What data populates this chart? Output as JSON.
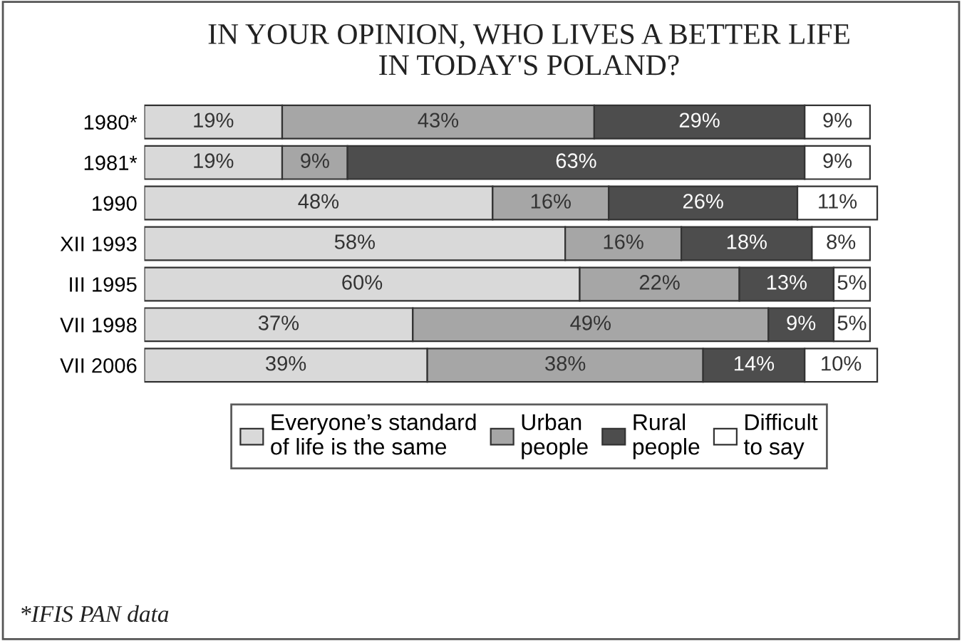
{
  "chart_data": {
    "type": "bar",
    "orientation": "horizontal",
    "stacked": true,
    "title": "IN YOUR OPINION, WHO LIVES A BETTER LIFE\nIN TODAY'S POLAND?",
    "categories": [
      "1980*",
      "1981*",
      "1990",
      "XII 1993",
      "III 1995",
      "VII 1998",
      "VII 2006"
    ],
    "series": [
      {
        "name": "Everyone’s standard\nof life is the same",
        "color": "#d9d9d9",
        "values": [
          19,
          19,
          48,
          58,
          60,
          37,
          39
        ],
        "value_labels": [
          "19%",
          "19%",
          "48%",
          "58%",
          "60%",
          "37%",
          "39%"
        ]
      },
      {
        "name": "Urban\npeople",
        "color": "#a6a6a6",
        "values": [
          43,
          9,
          16,
          16,
          22,
          49,
          38
        ],
        "value_labels": [
          "43%",
          "9%",
          "16%",
          "16%",
          "22%",
          "49%",
          "38%"
        ]
      },
      {
        "name": "Rural\npeople",
        "color": "#4d4d4d",
        "values": [
          29,
          63,
          26,
          18,
          13,
          9,
          14
        ],
        "value_labels": [
          "29%",
          "63%",
          "26%",
          "18%",
          "13%",
          "9%",
          "14%"
        ]
      },
      {
        "name": "Difficult\nto say",
        "color": "#ffffff",
        "values": [
          9,
          9,
          11,
          8,
          5,
          5,
          10
        ],
        "value_labels": [
          "9%",
          "9%",
          "11%",
          "8%",
          "5%",
          "5%",
          "10%"
        ]
      }
    ],
    "legend": "bottom",
    "grid": false,
    "tick_labels": "y",
    "annotations": [
      "*IFIS PAN data"
    ]
  }
}
